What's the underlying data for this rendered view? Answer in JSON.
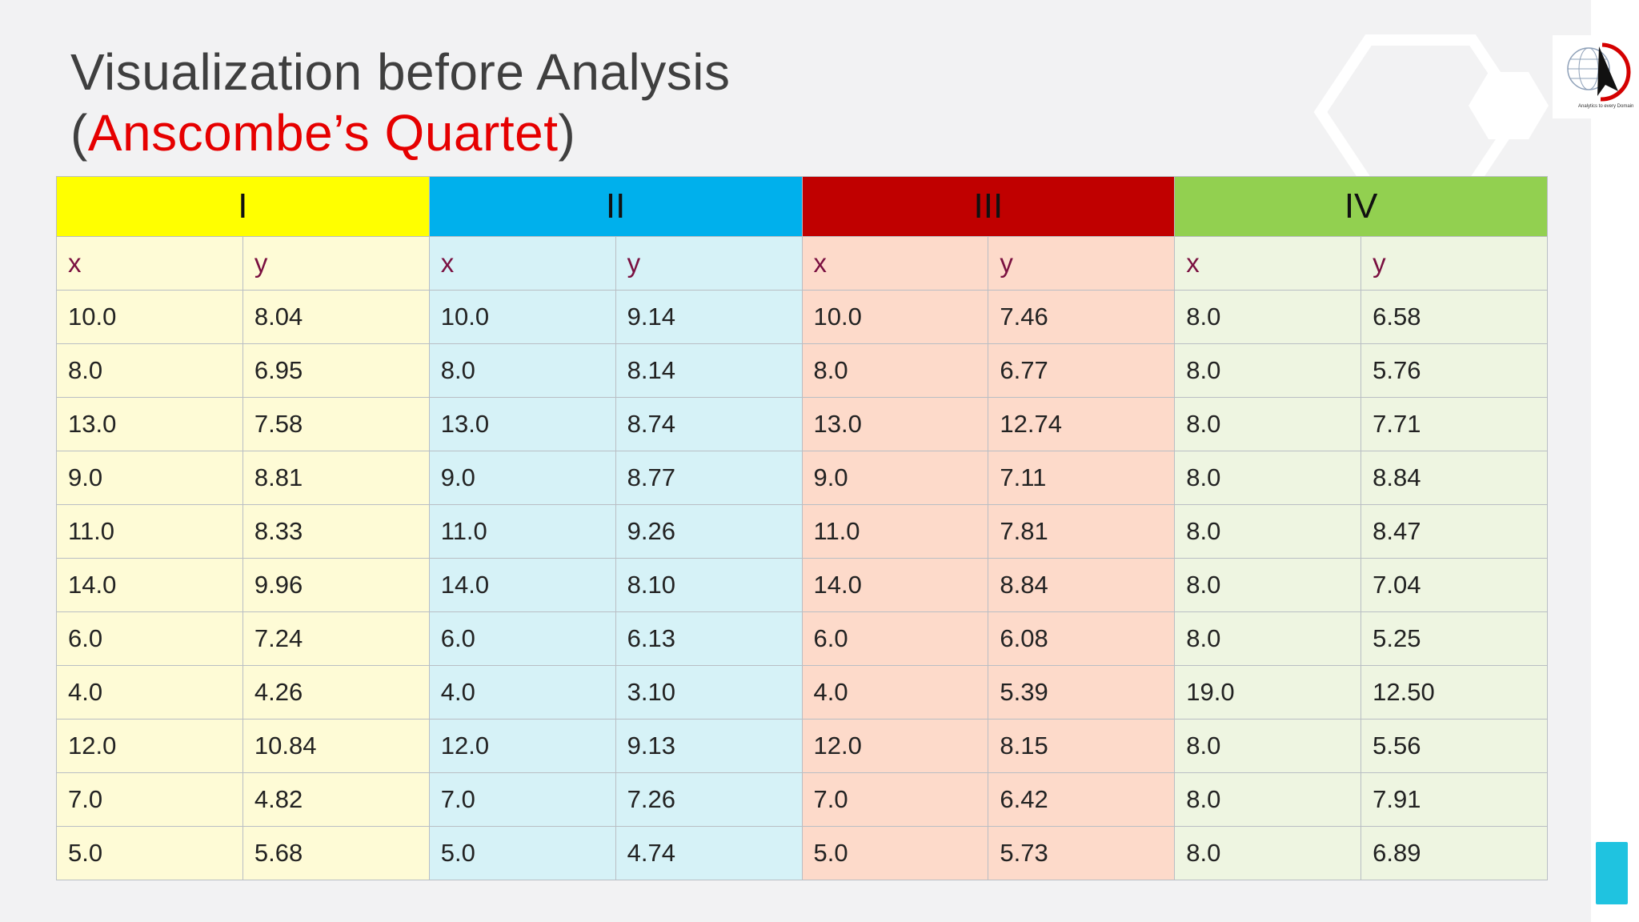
{
  "title": {
    "line1": "Visualization before Analysis",
    "open_paren": "(",
    "highlight": "Anscombe’s Quartet",
    "close_paren": ")"
  },
  "logo": {
    "caption": "Analytics to every Domain"
  },
  "colors": {
    "group_I": "#ffff00",
    "group_II": "#00b0ec",
    "group_III": "#c00000",
    "group_IV": "#92d050"
  },
  "table": {
    "groups": [
      "I",
      "II",
      "III",
      "IV"
    ],
    "columns": [
      "x",
      "y",
      "x",
      "y",
      "x",
      "y",
      "x",
      "y"
    ],
    "rows": [
      [
        "10.0",
        "8.04",
        "10.0",
        "9.14",
        "10.0",
        "7.46",
        "8.0",
        "6.58"
      ],
      [
        "8.0",
        "6.95",
        "8.0",
        "8.14",
        "8.0",
        "6.77",
        "8.0",
        "5.76"
      ],
      [
        "13.0",
        "7.58",
        "13.0",
        "8.74",
        "13.0",
        "12.74",
        "8.0",
        "7.71"
      ],
      [
        "9.0",
        "8.81",
        "9.0",
        "8.77",
        "9.0",
        "7.11",
        "8.0",
        "8.84"
      ],
      [
        "11.0",
        "8.33",
        "11.0",
        "9.26",
        "11.0",
        "7.81",
        "8.0",
        "8.47"
      ],
      [
        "14.0",
        "9.96",
        "14.0",
        "8.10",
        "14.0",
        "8.84",
        "8.0",
        "7.04"
      ],
      [
        "6.0",
        "7.24",
        "6.0",
        "6.13",
        "6.0",
        "6.08",
        "8.0",
        "5.25"
      ],
      [
        "4.0",
        "4.26",
        "4.0",
        "3.10",
        "4.0",
        "5.39",
        "19.0",
        "12.50"
      ],
      [
        "12.0",
        "10.84",
        "12.0",
        "9.13",
        "12.0",
        "8.15",
        "8.0",
        "5.56"
      ],
      [
        "7.0",
        "4.82",
        "7.0",
        "7.26",
        "7.0",
        "6.42",
        "8.0",
        "7.91"
      ],
      [
        "5.0",
        "5.68",
        "5.0",
        "4.74",
        "5.0",
        "5.73",
        "8.0",
        "6.89"
      ]
    ]
  }
}
